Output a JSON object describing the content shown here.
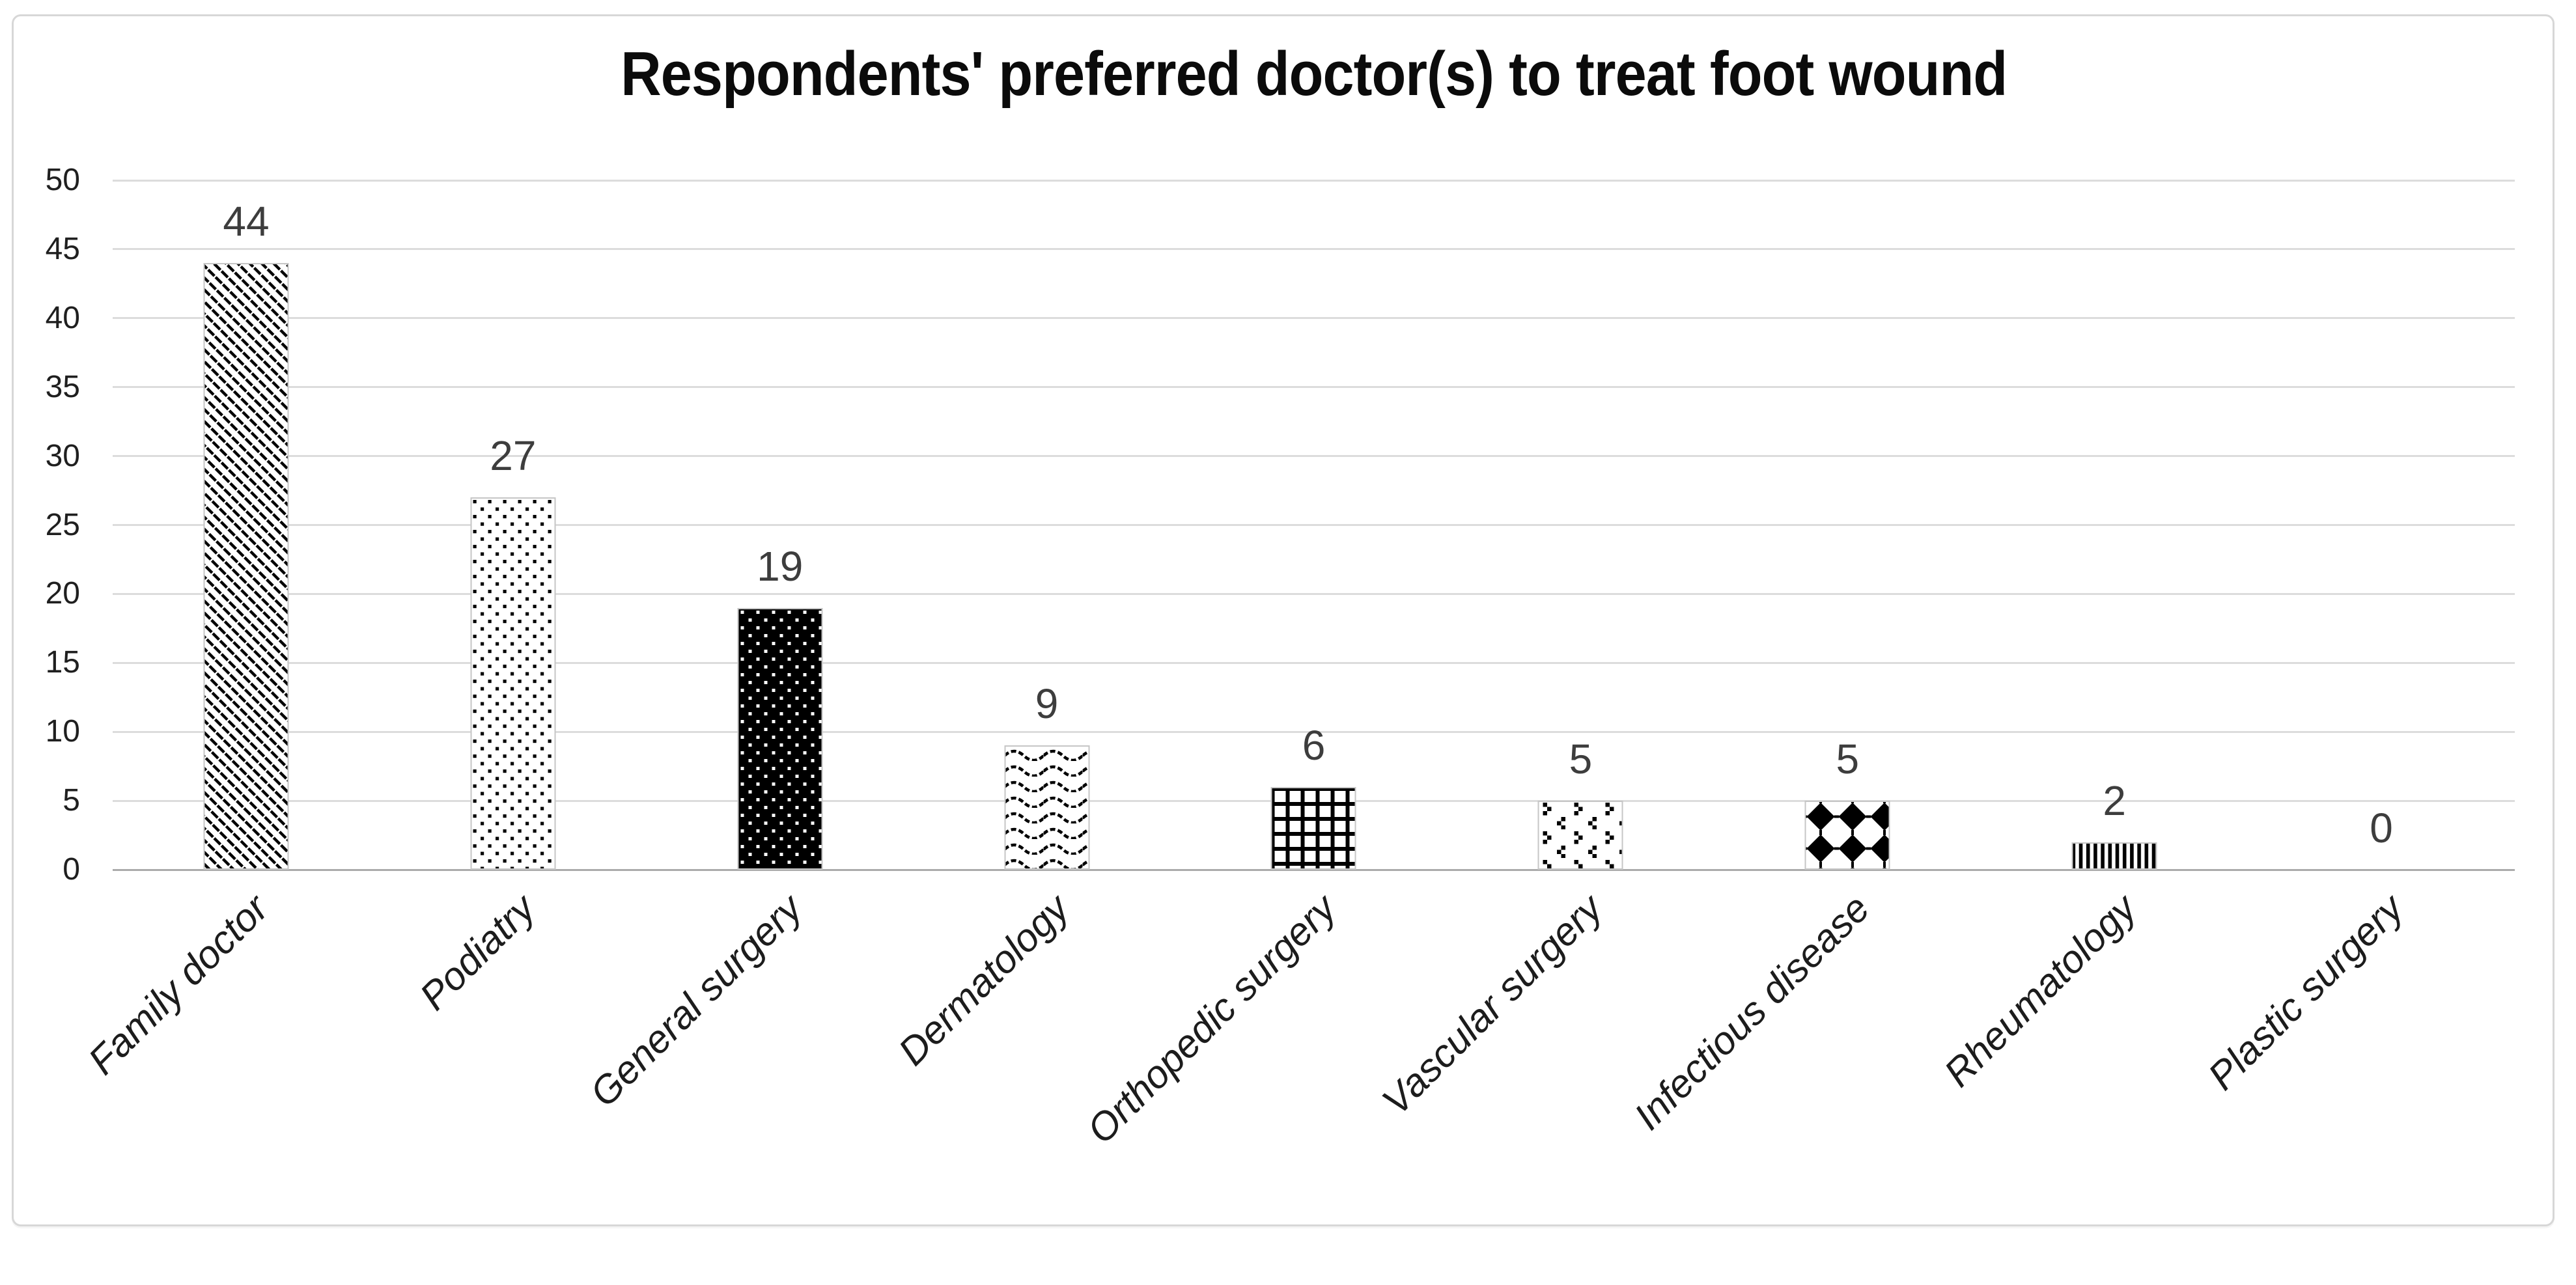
{
  "chart_data": {
    "type": "bar",
    "title": "Respondents' preferred doctor(s) to treat foot wound",
    "categories": [
      "Family doctor",
      "Podiatry",
      "General surgery",
      "Dermatology",
      "Orthopedic surgery",
      "Vascular surgery",
      "Infectious disease",
      "Rheumatology",
      "Plastic surgery"
    ],
    "values": [
      44,
      27,
      19,
      9,
      6,
      5,
      5,
      2,
      0
    ],
    "bar_patterns": [
      "diagonal-dashes",
      "dots",
      "white-dots-on-black",
      "wave",
      "grid",
      "confetti",
      "diamonds",
      "vertical-stripes",
      "none"
    ],
    "value_labels": [
      44,
      27,
      19,
      9,
      6,
      5,
      5,
      2,
      0
    ],
    "xlabel": "",
    "ylabel": "",
    "ylim": [
      0,
      50
    ],
    "ytick_step": 5,
    "yticks": [
      0,
      5,
      10,
      15,
      20,
      25,
      30,
      35,
      40,
      45,
      50
    ],
    "grid": "horizontal",
    "legend_position": "none"
  },
  "colors": {
    "background": "#ffffff",
    "frame_border": "#d7d7d7",
    "pattern_ink": "#000000",
    "bar_border": "#c6c6c6",
    "gridline": "#dcdcdc",
    "axis_line": "#ababab",
    "tick_label": "#1f1f1f",
    "value_label": "#3d3d3d",
    "category_label": "#1c1c1c",
    "title": "#0b0b0b"
  }
}
